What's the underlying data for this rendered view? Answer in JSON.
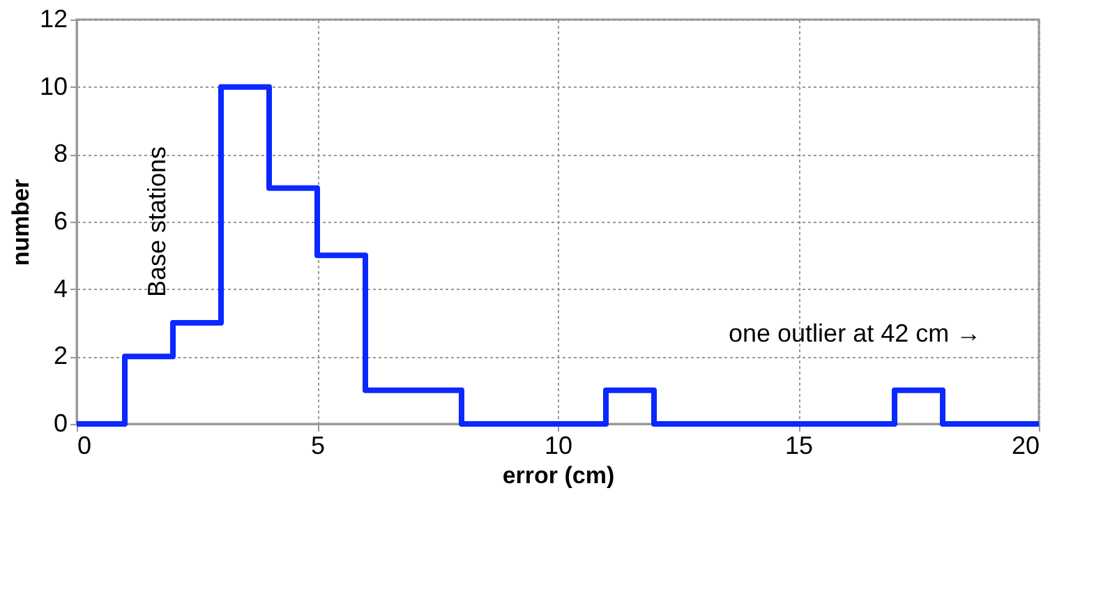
{
  "chart_data": {
    "type": "histogram",
    "xlabel": "error (cm)",
    "ylabel": "number",
    "bins": [
      0,
      1,
      2,
      3,
      4,
      5,
      6,
      7,
      8,
      9,
      10,
      11,
      12,
      13,
      14,
      15,
      16,
      17,
      18,
      19,
      20
    ],
    "values": [
      0,
      2,
      3,
      10,
      7,
      5,
      1,
      1,
      0,
      0,
      0,
      1,
      0,
      0,
      0,
      0,
      0,
      1,
      0,
      0
    ],
    "color": "#0a28ff",
    "xlim": [
      0,
      20
    ],
    "xticks": [
      0,
      5,
      10,
      15,
      20
    ],
    "ylim": [
      0,
      12
    ],
    "yticks": [
      0,
      2,
      4,
      6,
      8,
      10,
      12
    ],
    "grid": true,
    "annotations": [
      "Base stations",
      "one outlier at 42 cm →"
    ]
  }
}
